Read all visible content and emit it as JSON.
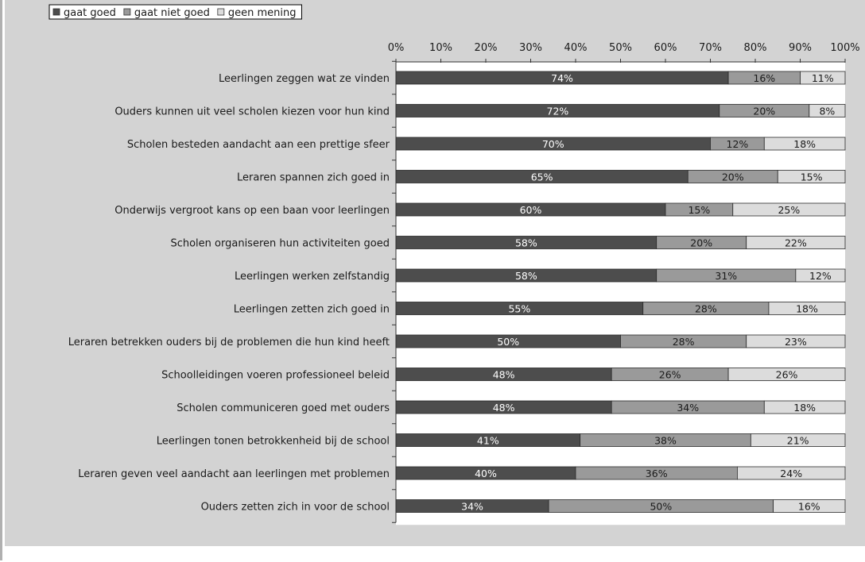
{
  "chart_data": {
    "type": "bar",
    "orientation": "horizontal",
    "stacked": true,
    "legend_position": "top-left",
    "grid": false,
    "xlim": [
      0,
      100
    ],
    "x_ticks": [
      "0%",
      "10%",
      "20%",
      "30%",
      "40%",
      "50%",
      "60%",
      "70%",
      "80%",
      "90%",
      "100%"
    ],
    "categories": [
      "Leerlingen zeggen wat ze vinden",
      "Ouders kunnen uit veel scholen kiezen voor hun kind",
      "Scholen besteden aandacht aan een prettige sfeer",
      "Leraren spannen zich goed in",
      "Onderwijs vergroot kans op een baan voor leerlingen",
      "Scholen organiseren hun activiteiten goed",
      "Leerlingen werken zelfstandig",
      "Leerlingen zetten zich goed in",
      "Leraren betrekken ouders bij de problemen die hun kind heeft",
      "Schoolleidingen voeren professioneel beleid",
      "Scholen communiceren goed met ouders",
      "Leerlingen tonen betrokkenheid bij de school",
      "Leraren geven veel aandacht aan leerlingen met problemen",
      "Ouders zetten zich in voor de school"
    ],
    "series": [
      {
        "name": "gaat goed",
        "color": "#4d4d4d",
        "label_color": "#ffffff",
        "values": [
          74,
          72,
          70,
          65,
          60,
          58,
          58,
          55,
          50,
          48,
          48,
          41,
          40,
          34
        ]
      },
      {
        "name": "gaat niet goed",
        "color": "#9a9a9a",
        "label_color": "#1a1a1a",
        "values": [
          16,
          20,
          12,
          20,
          15,
          20,
          31,
          28,
          28,
          26,
          34,
          38,
          36,
          50
        ]
      },
      {
        "name": "geen mening",
        "color": "#dcdcdc",
        "label_color": "#1a1a1a",
        "values": [
          11,
          8,
          18,
          15,
          25,
          22,
          12,
          18,
          23,
          26,
          18,
          21,
          24,
          16
        ]
      }
    ]
  }
}
